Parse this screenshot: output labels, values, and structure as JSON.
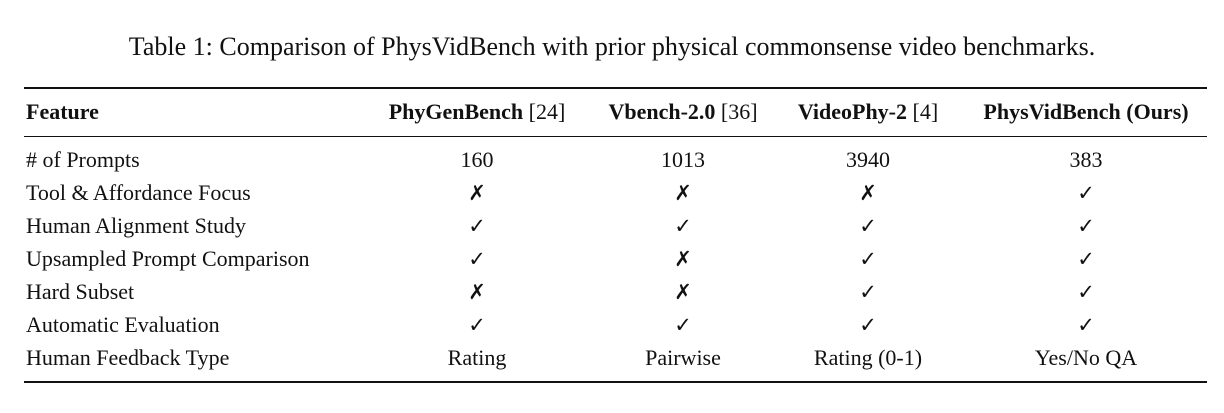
{
  "caption": "Table 1: Comparison of PhysVidBench with prior physical commonsense video benchmarks.",
  "table": {
    "header": [
      {
        "name": "Feature"
      },
      {
        "name": "PhyGenBench",
        "ref": "[24]"
      },
      {
        "name": "Vbench-2.0",
        "ref": "[36]"
      },
      {
        "name": "VideoPhy-2",
        "ref": "[4]"
      },
      {
        "name": "PhysVidBench (Ours)"
      }
    ],
    "rows": [
      [
        "# of Prompts",
        "160",
        "1013",
        "3940",
        "383"
      ],
      [
        "Tool & Affordance Focus",
        "✗",
        "✗",
        "✗",
        "✓"
      ],
      [
        "Human Alignment Study",
        "✓",
        "✓",
        "✓",
        "✓"
      ],
      [
        "Upsampled Prompt Comparison",
        "✓",
        "✗",
        "✓",
        "✓"
      ],
      [
        "Hard Subset",
        "✗",
        "✗",
        "✓",
        "✓"
      ],
      [
        "Automatic Evaluation",
        "✓",
        "✓",
        "✓",
        "✓"
      ],
      [
        "Human Feedback Type",
        "Rating",
        "Pairwise",
        "Rating (0-1)",
        "Yes/No QA"
      ]
    ]
  }
}
